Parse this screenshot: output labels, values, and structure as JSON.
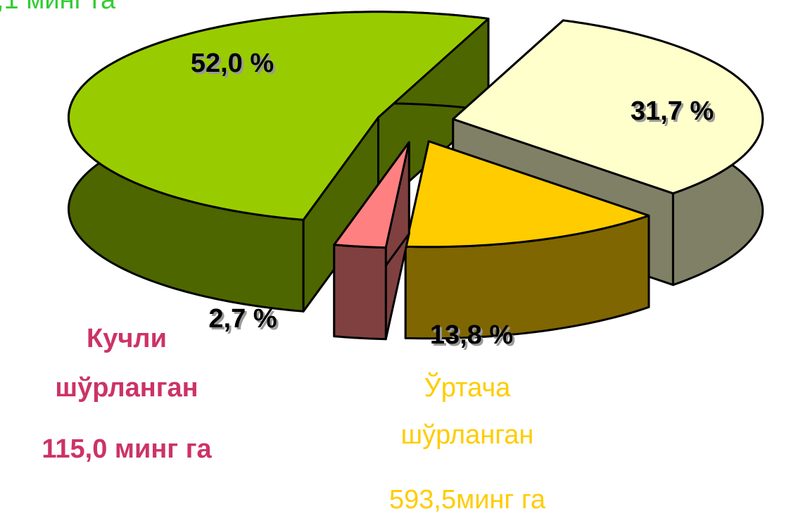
{
  "chart_data": {
    "type": "pie",
    "values": [
      52.0,
      31.7,
      13.8,
      2.7
    ],
    "value_labels": [
      "52,0 %",
      "31,7 %",
      "13,8 %",
      "2,7 %"
    ],
    "colors": [
      "#99cc00",
      "#ffffcc",
      "#ffcc00",
      "#ff8080"
    ],
    "annotations": [
      {
        "lines": [
          ",1 минг га"
        ],
        "color": "#33cc33"
      },
      {
        "lines": [
          "Кучли",
          "шўрланган",
          "115,0 минг га"
        ],
        "color": "#cc3366"
      },
      {
        "lines": [
          "Ўртача",
          "шўрланган",
          "593,5минг га"
        ],
        "color": "#ffcc00"
      }
    ]
  }
}
